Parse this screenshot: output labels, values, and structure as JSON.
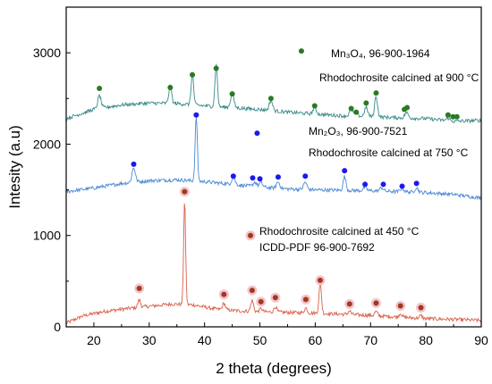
{
  "chart_data": {
    "type": "line",
    "xlabel": "2 theta (degrees)",
    "ylabel": "Intesity (a.u)",
    "xlim": [
      15,
      90
    ],
    "ylim": [
      0,
      3500
    ],
    "x_ticks": [
      "20",
      "30",
      "40",
      "50",
      "60",
      "70",
      "80",
      "90"
    ],
    "y_ticks": [
      "0",
      "1000",
      "2000",
      "3000"
    ],
    "grid": false,
    "series": [
      {
        "key": "s450",
        "color": "#d9614a",
        "marker_color": "#a0391e",
        "marker_halo": "#f2c4cc",
        "baseline": [
          [
            15,
            40
          ],
          [
            18,
            120
          ],
          [
            22,
            170
          ],
          [
            26,
            200
          ],
          [
            30,
            225
          ],
          [
            34,
            250
          ],
          [
            38,
            240
          ],
          [
            42,
            195
          ],
          [
            46,
            175
          ],
          [
            50,
            165
          ],
          [
            55,
            158
          ],
          [
            60,
            150
          ],
          [
            65,
            138
          ],
          [
            70,
            125
          ],
          [
            75,
            108
          ],
          [
            80,
            90
          ],
          [
            85,
            82
          ],
          [
            90,
            70
          ]
        ],
        "peaks": [
          [
            28.2,
            80,
            0.25
          ],
          [
            36.4,
            1130,
            0.18
          ],
          [
            43.5,
            70,
            0.25
          ],
          [
            48.6,
            120,
            0.25
          ],
          [
            50.2,
            35,
            0.25
          ],
          [
            52.8,
            60,
            0.25
          ],
          [
            58.3,
            55,
            0.25
          ],
          [
            60.9,
            340,
            0.22
          ],
          [
            66.2,
            40,
            0.25
          ],
          [
            71,
            45,
            0.25
          ],
          [
            75.4,
            40,
            0.25
          ],
          [
            79.1,
            30,
            0.25
          ]
        ],
        "markers": [
          [
            28.2,
            420
          ],
          [
            36.4,
            1480
          ],
          [
            43.5,
            355
          ],
          [
            48.6,
            400
          ],
          [
            50.2,
            275
          ],
          [
            52.8,
            320
          ],
          [
            58.3,
            300
          ],
          [
            60.9,
            510
          ],
          [
            66.2,
            250
          ],
          [
            71,
            260
          ],
          [
            75.4,
            230
          ],
          [
            79.1,
            210
          ]
        ]
      },
      {
        "key": "s750",
        "color": "#4a8ad4",
        "marker_color": "#1a1aee",
        "marker_halo": "none",
        "baseline": [
          [
            15,
            1480
          ],
          [
            20,
            1520
          ],
          [
            25,
            1570
          ],
          [
            30,
            1600
          ],
          [
            35,
            1610
          ],
          [
            40,
            1590
          ],
          [
            45,
            1560
          ],
          [
            50,
            1530
          ],
          [
            55,
            1510
          ],
          [
            60,
            1500
          ],
          [
            65,
            1495
          ],
          [
            70,
            1490
          ],
          [
            75,
            1480
          ],
          [
            80,
            1470
          ],
          [
            85,
            1450
          ],
          [
            90,
            1410
          ]
        ],
        "peaks": [
          [
            27.2,
            160,
            0.3
          ],
          [
            38.5,
            710,
            0.2
          ],
          [
            45.2,
            80,
            0.3
          ],
          [
            49.1,
            50,
            0.3
          ],
          [
            50.2,
            50,
            0.3
          ],
          [
            53.3,
            70,
            0.3
          ],
          [
            58.2,
            80,
            0.3
          ],
          [
            65.3,
            150,
            0.25
          ],
          [
            69,
            40,
            0.3
          ],
          [
            72,
            40,
            0.3
          ],
          [
            75.7,
            40,
            0.3
          ],
          [
            78.3,
            50,
            0.3
          ]
        ],
        "markers": [
          [
            27.2,
            1780
          ],
          [
            38.5,
            2320
          ],
          [
            45.2,
            1650
          ],
          [
            48.7,
            1630
          ],
          [
            50,
            1620
          ],
          [
            53.3,
            1640
          ],
          [
            58.2,
            1650
          ],
          [
            65.3,
            1710
          ],
          [
            69,
            1560
          ],
          [
            72.3,
            1560
          ],
          [
            75.7,
            1540
          ],
          [
            78.3,
            1570
          ]
        ]
      },
      {
        "key": "s900",
        "color": "#3a8a8a",
        "marker_color": "#2a7a25",
        "marker_halo": "none",
        "baseline": [
          [
            15,
            2280
          ],
          [
            20,
            2380
          ],
          [
            25,
            2430
          ],
          [
            30,
            2450
          ],
          [
            35,
            2445
          ],
          [
            40,
            2420
          ],
          [
            45,
            2400
          ],
          [
            50,
            2380
          ],
          [
            55,
            2350
          ],
          [
            60,
            2330
          ],
          [
            65,
            2310
          ],
          [
            70,
            2300
          ],
          [
            75,
            2290
          ],
          [
            80,
            2280
          ],
          [
            85,
            2250
          ],
          [
            90,
            2260
          ]
        ],
        "peaks": [
          [
            21,
            140,
            0.3
          ],
          [
            33.8,
            200,
            0.25
          ],
          [
            37.8,
            350,
            0.22
          ],
          [
            42.1,
            460,
            0.22
          ],
          [
            45,
            150,
            0.3
          ],
          [
            52,
            110,
            0.3
          ],
          [
            59.9,
            70,
            0.3
          ],
          [
            66.5,
            70,
            0.3
          ],
          [
            67.4,
            40,
            0.3
          ],
          [
            69.2,
            100,
            0.3
          ],
          [
            71,
            230,
            0.25
          ],
          [
            76.5,
            60,
            0.3
          ],
          [
            84,
            30,
            0.3
          ]
        ],
        "markers": [
          [
            21,
            2610
          ],
          [
            33.8,
            2620
          ],
          [
            37.8,
            2760
          ],
          [
            42.1,
            2830
          ],
          [
            45,
            2550
          ],
          [
            52,
            2500
          ],
          [
            59.9,
            2420
          ],
          [
            66.5,
            2390
          ],
          [
            67.4,
            2350
          ],
          [
            69.2,
            2450
          ],
          [
            71,
            2560
          ],
          [
            76.1,
            2380
          ],
          [
            76.6,
            2400
          ],
          [
            84,
            2320
          ],
          [
            84.9,
            2300
          ],
          [
            85.6,
            2300
          ]
        ]
      }
    ],
    "annotations": [
      {
        "key": "mn3o4_marker",
        "x": 57.5,
        "y": 3020,
        "color": "#2a7a25"
      },
      {
        "key": "mn2o3_marker",
        "x": 49.5,
        "y": 2120,
        "color": "#1a1aee"
      },
      {
        "key": "icdd_marker",
        "x": 48.3,
        "y": 1000,
        "color": "#a0391e",
        "halo": "#f2c4cc"
      }
    ]
  },
  "labels": {
    "mn3o4_formula": "Mn₃O₄,  96-900-1964",
    "calc900": "Rhodochrosite calcined at 900 °C",
    "mn2o3_formula": "Mn₂O₃,  96-900-7521",
    "calc750": "Rhodochrosite calcined at 750 °C",
    "calc450": "Rhodochrosite calcined at 450 °C",
    "icdd": "ICDD-PDF  96-900-7692"
  }
}
